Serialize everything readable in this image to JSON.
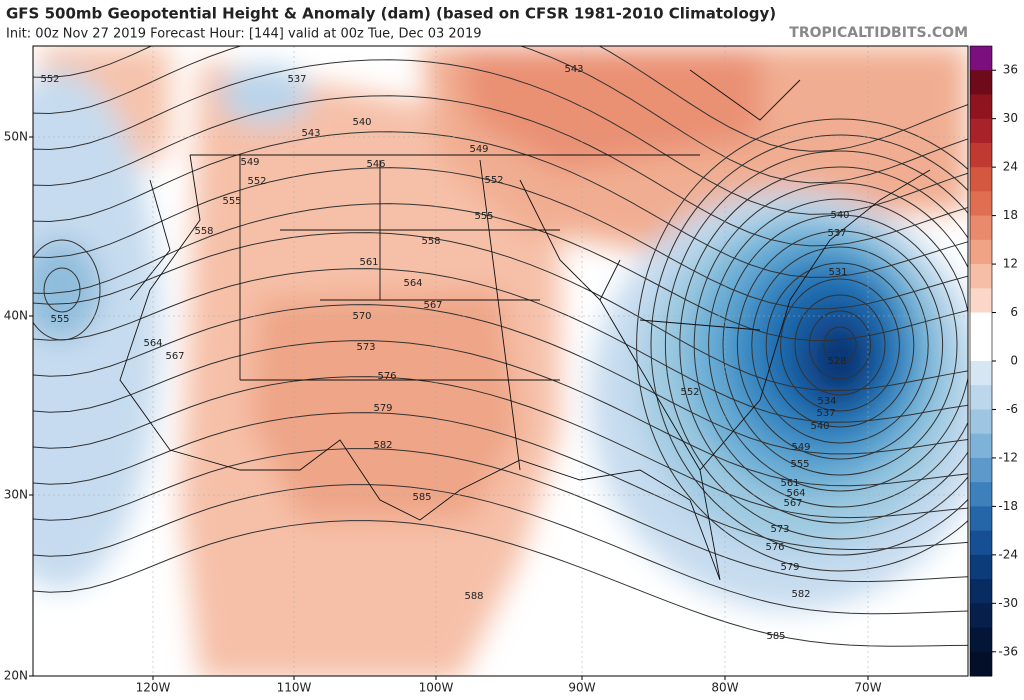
{
  "header": {
    "title": "GFS 500mb Geopotential Height & Anomaly (dam) (based on CFSR 1981-2010 Climatology)",
    "subtitle": "Init: 00z Nov 27 2019   Forecast Hour: [144]   valid at 00z Tue, Dec 03 2019",
    "credit": "TROPICALTIDBITS.COM"
  },
  "map": {
    "lat_labels": [
      "50N",
      "40N",
      "30N",
      "20N"
    ],
    "lon_labels": [
      "120W",
      "110W",
      "100W",
      "90W",
      "80W",
      "70W"
    ],
    "contour_labels": [
      "552",
      "537",
      "543",
      "540",
      "543",
      "549",
      "546",
      "549",
      "552",
      "552",
      "555",
      "555",
      "558",
      "558",
      "561",
      "564",
      "567",
      "555",
      "570",
      "564",
      "573",
      "567",
      "576",
      "579",
      "582",
      "585",
      "588",
      "540",
      "537",
      "531",
      "528",
      "534",
      "537",
      "540",
      "552",
      "549",
      "555",
      "561",
      "564",
      "567",
      "573",
      "576",
      "579",
      "582",
      "585"
    ]
  },
  "colorbar": {
    "ticks": [
      "36",
      "30",
      "24",
      "18",
      "12",
      "6",
      "0",
      "-6",
      "-12",
      "-18",
      "-24",
      "-30",
      "-36"
    ]
  }
}
